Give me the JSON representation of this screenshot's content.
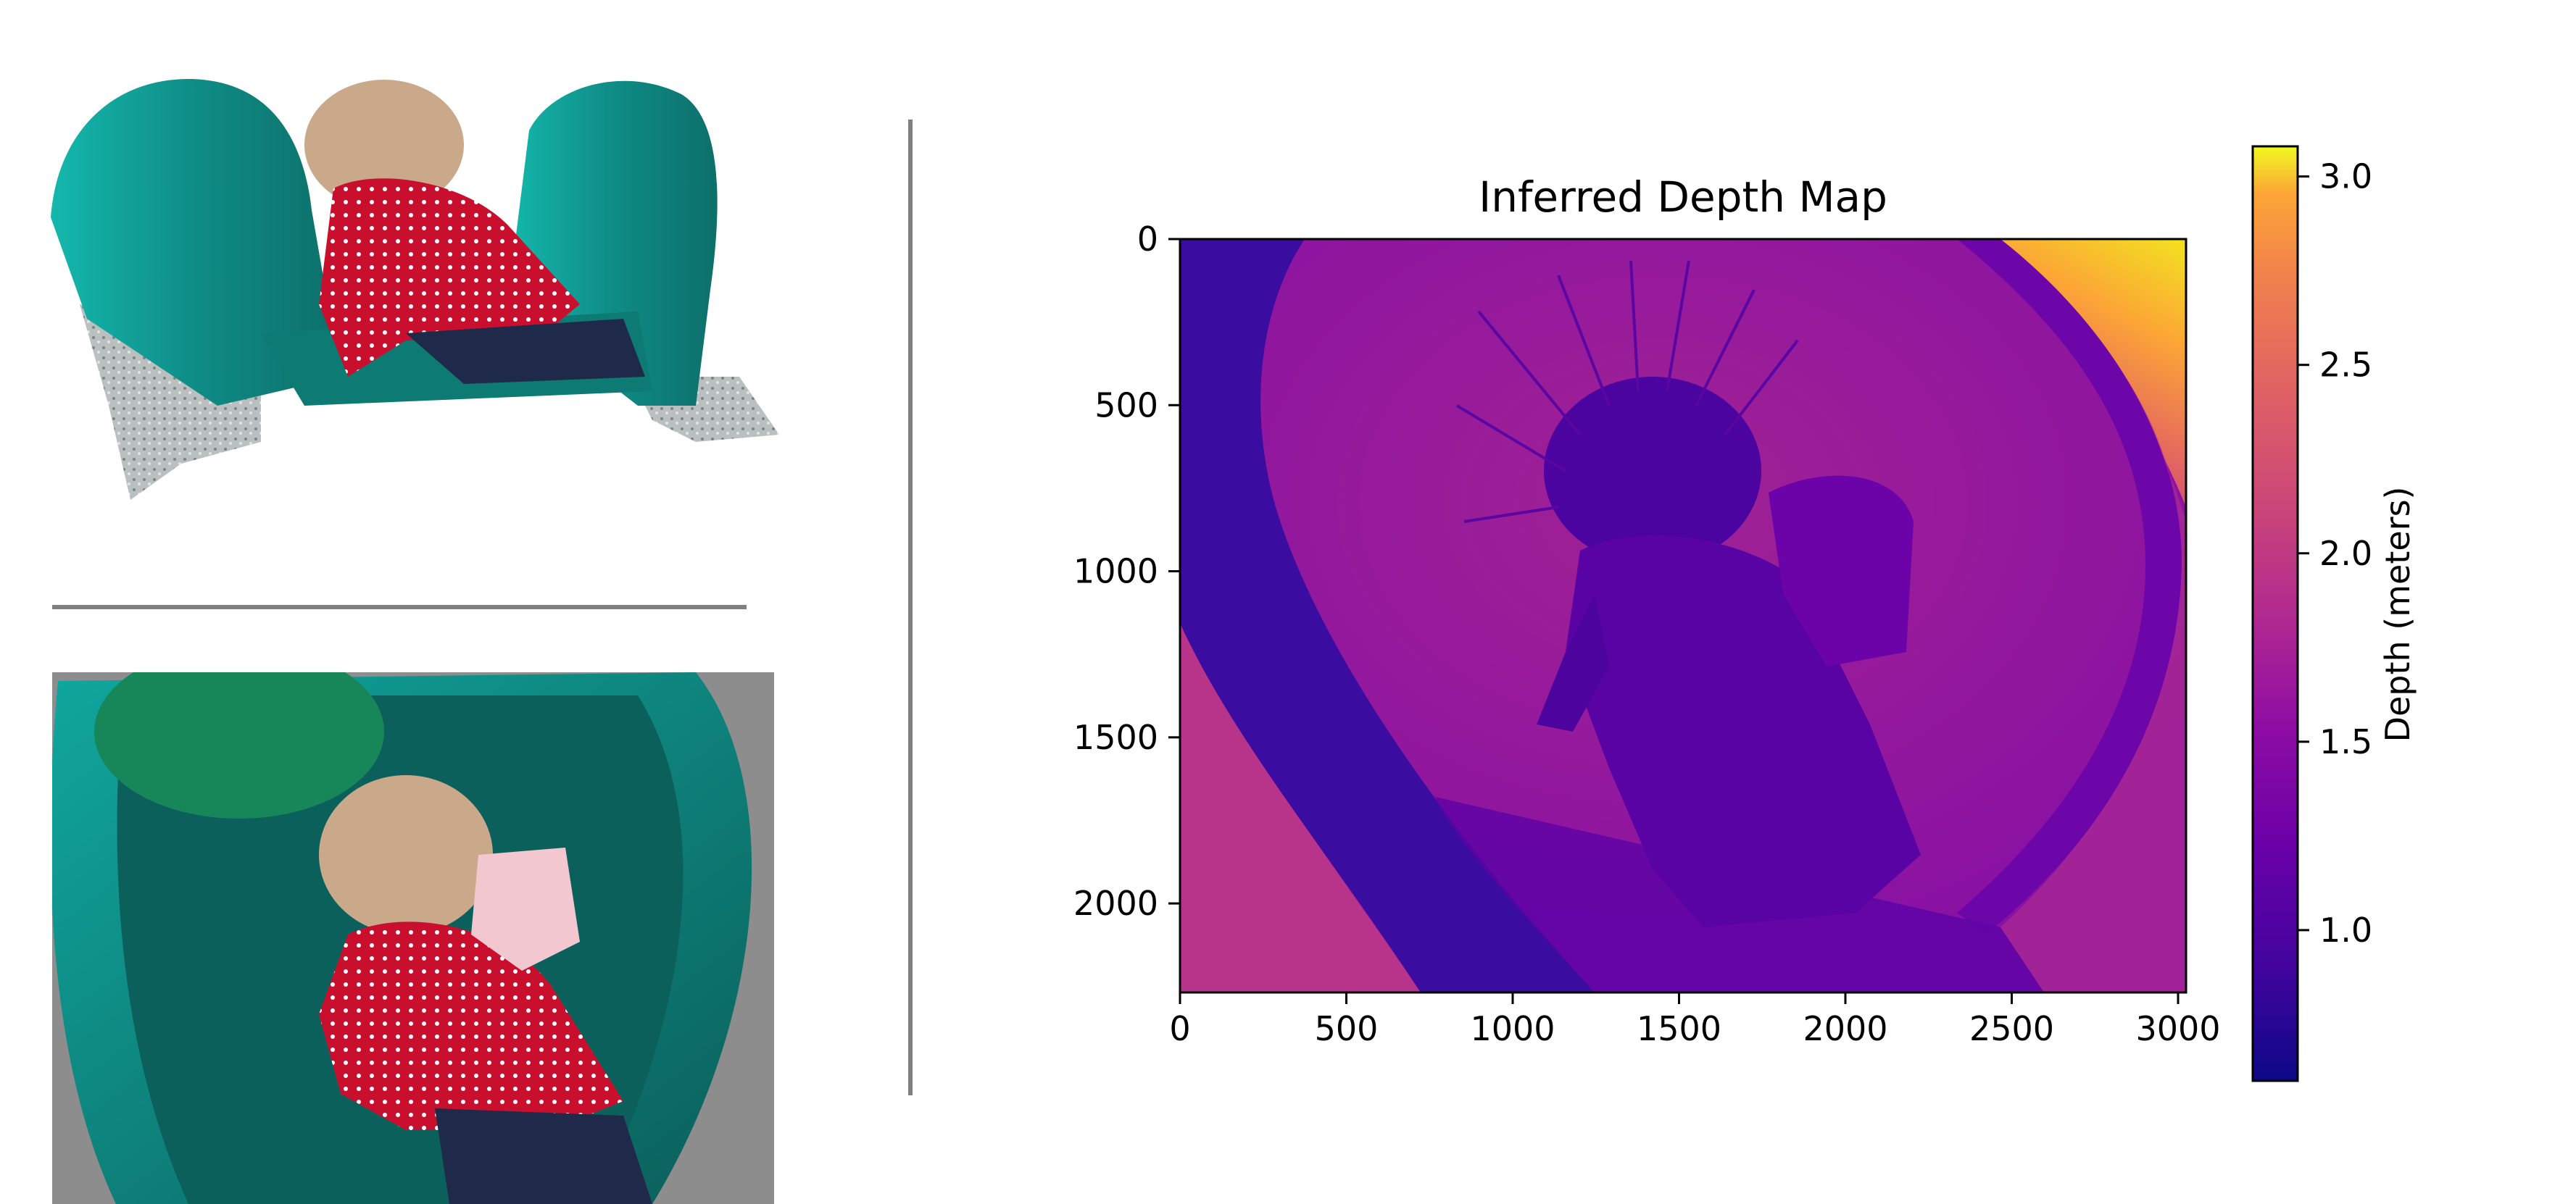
{
  "chart_data": {
    "type": "heatmap",
    "title": "Inferred Depth Map",
    "xlabel": "",
    "ylabel": "",
    "x_ticks": [
      0,
      500,
      1000,
      1500,
      2000,
      2500,
      3000
    ],
    "y_ticks": [
      0,
      500,
      1000,
      1500,
      2000
    ],
    "xlim": [
      0,
      3024
    ],
    "ylim": [
      2268,
      0
    ],
    "colormap": "plasma",
    "colorbar": {
      "label": "Depth (meters)",
      "ticks": [
        1.0,
        1.5,
        2.0,
        2.5,
        3.0
      ],
      "tick_labels": [
        "1.0",
        "1.5",
        "2.0",
        "2.5",
        "3.0"
      ],
      "range": [
        0.6,
        3.08
      ]
    },
    "regions": [
      {
        "name": "background-slide-surface",
        "depth": 1.35
      },
      {
        "name": "left-slide-rail",
        "depth": 0.72
      },
      {
        "name": "right-slide-rim",
        "depth": 0.95
      },
      {
        "name": "child-head",
        "depth": 0.85
      },
      {
        "name": "child-body",
        "depth": 1.05
      },
      {
        "name": "top-right-ground",
        "depth": 2.8
      },
      {
        "name": "lower-left-ground",
        "depth": 1.45
      }
    ]
  },
  "panels": {
    "point_cloud_panel": {
      "description_icon": "point-cloud-view"
    },
    "photo_panel": {
      "description_icon": "slide-photo"
    },
    "colors": {
      "slide_teal": "#138f8a",
      "slide_dark": "#0a5a55",
      "jacket_red": "#c8102e",
      "hair_blond": "#c9a98a",
      "pavement": "#8d8d8d",
      "divider": "#808080"
    }
  }
}
